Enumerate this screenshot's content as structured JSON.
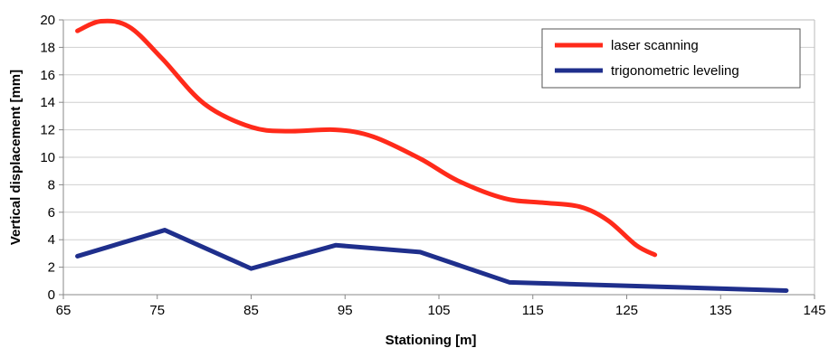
{
  "chart_data": {
    "type": "line",
    "xlabel": "Stationing [m]",
    "ylabel": "Vertical displacement [mm]",
    "xlim": [
      65,
      145
    ],
    "ylim": [
      0,
      20
    ],
    "xticks": [
      65,
      75,
      85,
      95,
      105,
      115,
      125,
      135,
      145
    ],
    "yticks": [
      0,
      2,
      4,
      6,
      8,
      10,
      12,
      14,
      16,
      18,
      20
    ],
    "grid": "horizontal",
    "legend_position": "top-right",
    "series": [
      {
        "name": "laser scanning",
        "color": "#ff2a1a",
        "smooth": true,
        "x": [
          66.5,
          69,
          72,
          75.5,
          80,
          85,
          89,
          94,
          98,
          103,
          107,
          112,
          116,
          120,
          123,
          126,
          128
        ],
        "y": [
          19.2,
          19.9,
          19.5,
          17.2,
          13.9,
          12.2,
          11.9,
          12.0,
          11.5,
          9.9,
          8.3,
          7.0,
          6.7,
          6.4,
          5.4,
          3.6,
          2.9
        ]
      },
      {
        "name": "trigonometric leveling",
        "color": "#1f2f8c",
        "smooth": false,
        "x": [
          66.5,
          75.8,
          85,
          94,
          103,
          112.5,
          142
        ],
        "y": [
          2.8,
          4.7,
          1.9,
          3.6,
          3.1,
          0.9,
          0.3
        ]
      }
    ]
  }
}
